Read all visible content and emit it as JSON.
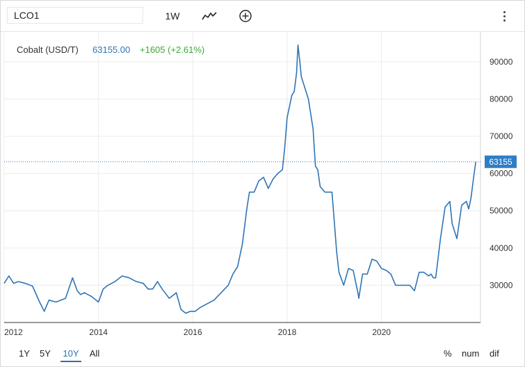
{
  "toolbar": {
    "symbol_value": "LCO1",
    "interval_label": "1W"
  },
  "legend": {
    "series_label": "Cobalt (USD/T)",
    "last_value": "63155.00",
    "change_text": "+1605 (+2.61%)"
  },
  "colors": {
    "line": "#2f74b5",
    "change": "#3aa935",
    "grid": "#ececec",
    "axis_text": "#333333",
    "last_badge": "#2f7ec4"
  },
  "range_buttons": [
    "1Y",
    "5Y",
    "10Y",
    "All"
  ],
  "active_range": "10Y",
  "right_buttons": [
    "%",
    "num",
    "dif"
  ],
  "icons": [
    "line-chart-icon",
    "add-indicator-icon",
    "more-options-icon"
  ],
  "chart_data": {
    "type": "line",
    "title": "",
    "xlabel": "",
    "ylabel": "",
    "x_ticks": [
      "2012",
      "2014",
      "2016",
      "2018",
      "2020"
    ],
    "x_tick_values": [
      2012,
      2014,
      2016,
      2018,
      2020
    ],
    "y_ticks": [
      "30000",
      "40000",
      "50000",
      "60000",
      "70000",
      "80000",
      "90000"
    ],
    "y_tick_values": [
      30000,
      40000,
      50000,
      60000,
      70000,
      80000,
      90000
    ],
    "xlim": [
      2012,
      2022.1
    ],
    "ylim": [
      20000,
      98000
    ],
    "grid": true,
    "y_axis_side": "right",
    "last_price_label": "63155",
    "last_price": 63155,
    "series": [
      {
        "name": "Cobalt (USD/T)",
        "x": [
          2012.0,
          2012.1,
          2012.2,
          2012.3,
          2012.45,
          2012.6,
          2012.75,
          2012.85,
          2012.95,
          2013.1,
          2013.3,
          2013.45,
          2013.55,
          2013.62,
          2013.7,
          2013.85,
          2014.0,
          2014.1,
          2014.2,
          2014.35,
          2014.5,
          2014.65,
          2014.8,
          2014.95,
          2015.05,
          2015.15,
          2015.25,
          2015.35,
          2015.5,
          2015.65,
          2015.75,
          2015.85,
          2015.95,
          2016.05,
          2016.15,
          2016.3,
          2016.45,
          2016.6,
          2016.75,
          2016.85,
          2016.95,
          2017.05,
          2017.15,
          2017.2,
          2017.3,
          2017.4,
          2017.5,
          2017.6,
          2017.7,
          2017.8,
          2017.9,
          2017.95,
          2018.0,
          2018.05,
          2018.1,
          2018.15,
          2018.2,
          2018.23,
          2018.27,
          2018.3,
          2018.35,
          2018.45,
          2018.55,
          2018.6,
          2018.65,
          2018.7,
          2018.8,
          2018.95,
          2019.0,
          2019.05,
          2019.1,
          2019.2,
          2019.3,
          2019.4,
          2019.5,
          2019.52,
          2019.6,
          2019.7,
          2019.8,
          2019.9,
          2020.0,
          2020.1,
          2020.2,
          2020.3,
          2020.4,
          2020.5,
          2020.6,
          2020.7,
          2020.8,
          2020.9,
          2021.0,
          2021.05,
          2021.1,
          2021.15,
          2021.25,
          2021.35,
          2021.45,
          2021.5,
          2021.55,
          2021.6,
          2021.7,
          2021.8,
          2021.85,
          2021.9,
          2021.95,
          2022.0
        ],
        "values": [
          30500,
          32500,
          30500,
          31000,
          30500,
          29800,
          25500,
          23000,
          26000,
          25500,
          26500,
          32000,
          28500,
          27500,
          28000,
          27000,
          25500,
          29000,
          30000,
          31000,
          32500,
          32000,
          31000,
          30500,
          29000,
          29000,
          31000,
          29000,
          26500,
          28000,
          23500,
          22500,
          23000,
          23000,
          24000,
          25000,
          26000,
          28000,
          30000,
          33000,
          35000,
          41000,
          51000,
          55000,
          55000,
          58000,
          59000,
          56000,
          58500,
          60000,
          61000,
          67000,
          75000,
          78000,
          81000,
          82000,
          87000,
          94500,
          90000,
          86000,
          84000,
          80000,
          72000,
          62000,
          61000,
          56500,
          55000,
          55000,
          47000,
          39000,
          33500,
          30000,
          34500,
          34000,
          28000,
          26500,
          33000,
          33000,
          37000,
          36500,
          34500,
          34000,
          33000,
          30000,
          30000,
          30000,
          30000,
          28500,
          33500,
          33500,
          32500,
          33000,
          32000,
          32000,
          42500,
          51000,
          52500,
          46500,
          44500,
          42500,
          51500,
          52500,
          50500,
          53500,
          58500,
          63155
        ]
      }
    ]
  }
}
